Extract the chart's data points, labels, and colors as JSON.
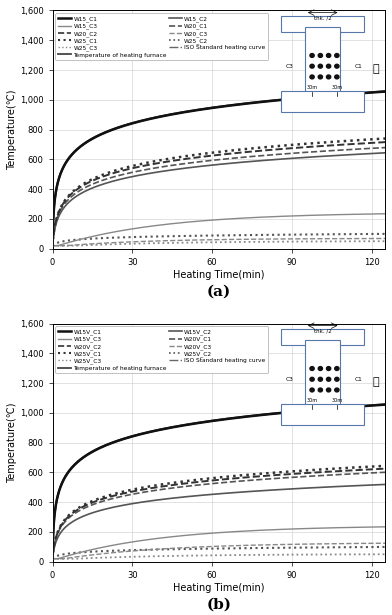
{
  "subplot_a": {
    "title": "(a)",
    "xlabel": "Heating Time(min)",
    "ylabel": "Temperature(℃)",
    "ylim": [
      0,
      1600
    ],
    "xlim": [
      0,
      125
    ],
    "yticks": [
      0,
      200,
      400,
      600,
      800,
      1000,
      1200,
      1400,
      1600
    ],
    "xticks": [
      0,
      30,
      60,
      90,
      120
    ],
    "yticklabels": [
      "0",
      "200",
      "400",
      "600",
      "800",
      "1,000",
      "1,200",
      "1,400",
      "1,600"
    ]
  },
  "subplot_b": {
    "title": "(b)",
    "xlabel": "Heating Time(min)",
    "ylabel": "Temperature(℃)",
    "ylim": [
      0,
      1600
    ],
    "xlim": [
      0,
      125
    ],
    "yticks": [
      0,
      200,
      400,
      600,
      800,
      1000,
      1200,
      1400,
      1600
    ],
    "xticks": [
      0,
      30,
      60,
      90,
      120
    ],
    "yticklabels": [
      "0",
      "200",
      "400",
      "600",
      "800",
      "1,000",
      "1,200",
      "1,400",
      "1,600"
    ]
  },
  "legend_a_col1": [
    {
      "label": "W15_C1",
      "ls": "-",
      "color": "#111111",
      "lw": 1.8
    },
    {
      "label": "W15_C3",
      "ls": "-",
      "color": "#888888",
      "lw": 1.0
    },
    {
      "label": "W20_C2",
      "ls": "--",
      "color": "#333333",
      "lw": 1.2
    },
    {
      "label": "W25_C1",
      "ls": ":",
      "color": "#333333",
      "lw": 1.5
    },
    {
      "label": "W25_C3",
      "ls": ":",
      "color": "#888888",
      "lw": 1.0
    },
    {
      "label": "Temperature of heating furnace",
      "ls": "-",
      "color": "#444444",
      "lw": 1.3
    }
  ],
  "legend_a_col2": [
    {
      "label": "W15_C2",
      "ls": "-",
      "color": "#555555",
      "lw": 1.2
    },
    {
      "label": "W20_C1",
      "ls": "--",
      "color": "#555555",
      "lw": 1.2
    },
    {
      "label": "W20_C3",
      "ls": "--",
      "color": "#888888",
      "lw": 1.0
    },
    {
      "label": "W25_C2",
      "ls": ":",
      "color": "#555555",
      "lw": 1.2
    },
    {
      "label": "ISO Standard heating curve",
      "ls": "-.",
      "color": "#666666",
      "lw": 1.0
    }
  ],
  "legend_b_col1": [
    {
      "label": "W15V_C1",
      "ls": "-",
      "color": "#111111",
      "lw": 1.8
    },
    {
      "label": "W15V_C3",
      "ls": "-",
      "color": "#888888",
      "lw": 1.0
    },
    {
      "label": "W20V_C2",
      "ls": "--",
      "color": "#333333",
      "lw": 1.2
    },
    {
      "label": "W25V_C1",
      "ls": ":",
      "color": "#333333",
      "lw": 1.5
    },
    {
      "label": "W25V_C3",
      "ls": ":",
      "color": "#888888",
      "lw": 1.0
    },
    {
      "label": "Temperature of heating furnace",
      "ls": "-",
      "color": "#444444",
      "lw": 1.3
    }
  ],
  "legend_b_col2": [
    {
      "label": "W15V_C2",
      "ls": "-",
      "color": "#555555",
      "lw": 1.2
    },
    {
      "label": "W20V_C1",
      "ls": "--",
      "color": "#555555",
      "lw": 1.2
    },
    {
      "label": "W20V_C3",
      "ls": "--",
      "color": "#888888",
      "lw": 1.0
    },
    {
      "label": "W25V_C2",
      "ls": ":",
      "color": "#555555",
      "lw": 1.2
    },
    {
      "label": "ISO Standard heating curve",
      "ls": "-.",
      "color": "#666666",
      "lw": 1.0
    }
  ],
  "schematic_a_label": "thk. /2",
  "schematic_b_label": "thk. /2"
}
